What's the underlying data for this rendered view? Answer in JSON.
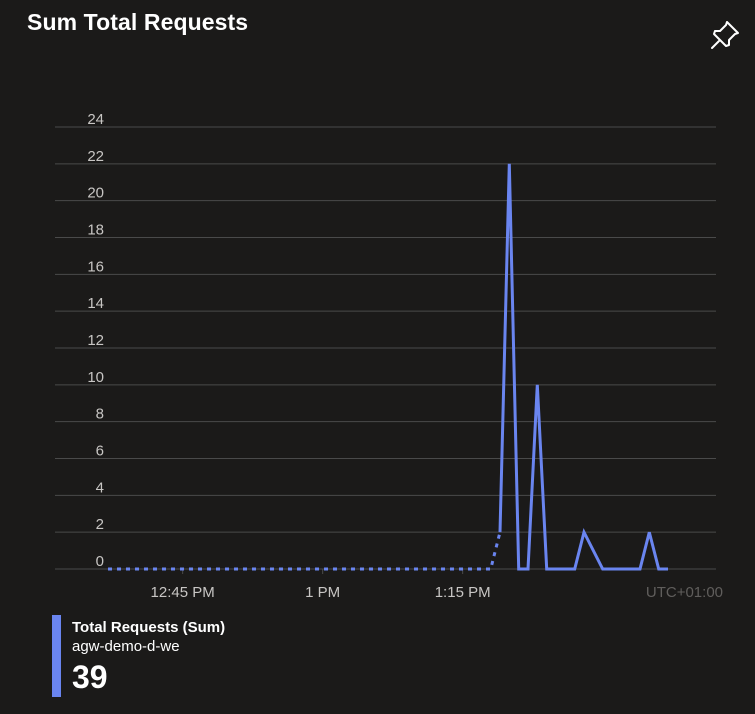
{
  "tile": {
    "title": "Sum Total Requests",
    "pin_icon": "pin-icon",
    "timezone": "UTC+01:00"
  },
  "colors": {
    "background": "#1b1a19",
    "series": "#6a85f0",
    "gridline": "#4a4a4a",
    "text": "#c8c6c4",
    "timezone_text": "#605e5c"
  },
  "chart_data": {
    "type": "line",
    "title": "Sum Total Requests",
    "xlabel": "",
    "ylabel": "",
    "ylim": [
      0,
      24
    ],
    "xlim": [
      "12:37",
      "13:40"
    ],
    "y_ticks": [
      "0",
      "2",
      "4",
      "6",
      "8",
      "10",
      "12",
      "14",
      "16",
      "18",
      "20",
      "22",
      "24"
    ],
    "x_ticks": [
      {
        "time": "12:45",
        "label": "12:45 PM"
      },
      {
        "time": "13:00",
        "label": "1 PM"
      },
      {
        "time": "13:15",
        "label": "1:15 PM"
      }
    ],
    "grid": true,
    "series": [
      {
        "name": "Total Requests (Sum)",
        "segments": [
          {
            "style": "dotted",
            "points": [
              [
                "12:37",
                0
              ],
              [
                "13:18",
                0
              ],
              [
                "13:19",
                2
              ]
            ]
          },
          {
            "style": "solid",
            "points": [
              [
                "13:19",
                2
              ],
              [
                "13:20",
                22
              ],
              [
                "13:21",
                0
              ],
              [
                "13:22",
                0
              ],
              [
                "13:23",
                10
              ],
              [
                "13:24",
                0
              ],
              [
                "13:27",
                0
              ],
              [
                "13:28",
                2
              ],
              [
                "13:30",
                0
              ],
              [
                "13:34",
                0
              ],
              [
                "13:35",
                2
              ],
              [
                "13:36",
                0
              ],
              [
                "13:37",
                0
              ]
            ]
          }
        ]
      }
    ]
  },
  "legend": {
    "series_label": "Total Requests (Sum)",
    "resource": "agw-demo-d-we",
    "total": "39"
  }
}
